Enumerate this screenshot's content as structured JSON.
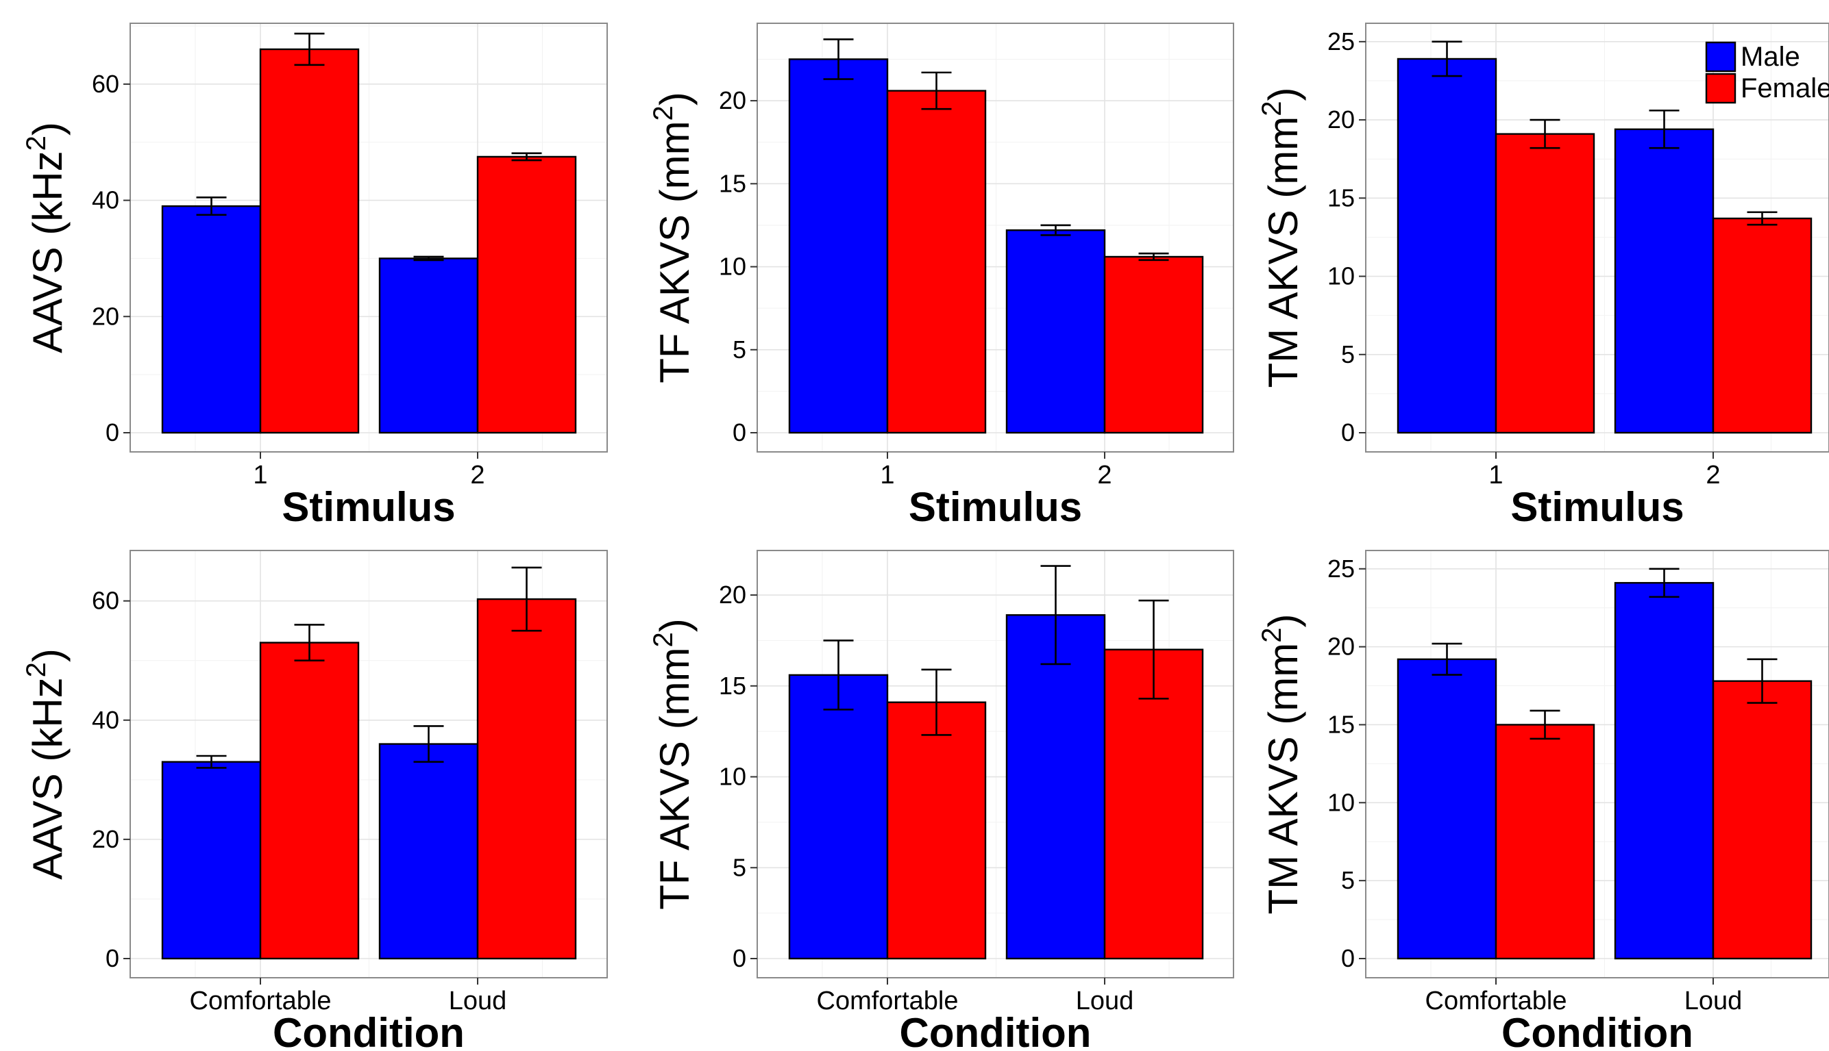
{
  "legend": {
    "items": [
      {
        "label": "Male",
        "color": "#0000ff"
      },
      {
        "label": "Female",
        "color": "#ff0000"
      }
    ],
    "placement": "top-right"
  },
  "chart_data": [
    {
      "type": "bar",
      "xlabel": "Stimulus",
      "ylabel_main": "AAVS (kHz",
      "ylabel_sup": "2",
      "ylabel_tail": ")",
      "categories": [
        "1",
        "2"
      ],
      "ylim": [
        0,
        70
      ],
      "yticks": [
        0,
        20,
        40,
        60
      ],
      "grid": true,
      "series": [
        {
          "name": "Male",
          "color": "#0000ff",
          "values": [
            39,
            30
          ],
          "errors": [
            1.5,
            0.3
          ]
        },
        {
          "name": "Female",
          "color": "#ff0000",
          "values": [
            66,
            47.5
          ],
          "errors": [
            2.7,
            0.6
          ]
        }
      ]
    },
    {
      "type": "bar",
      "xlabel": "Stimulus",
      "ylabel_main": "TF AKVS (mm",
      "ylabel_sup": "2",
      "ylabel_tail": ")",
      "categories": [
        "1",
        "2"
      ],
      "ylim": [
        0,
        24.5
      ],
      "yticks": [
        0,
        5,
        10,
        15,
        20
      ],
      "grid": true,
      "series": [
        {
          "name": "Male",
          "color": "#0000ff",
          "values": [
            22.5,
            12.2
          ],
          "errors": [
            1.2,
            0.3
          ]
        },
        {
          "name": "Female",
          "color": "#ff0000",
          "values": [
            20.6,
            10.6
          ],
          "errors": [
            1.1,
            0.2
          ]
        }
      ]
    },
    {
      "type": "bar",
      "xlabel": "Stimulus",
      "ylabel_main": "TM AKVS (mm",
      "ylabel_sup": "2",
      "ylabel_tail": ")",
      "categories": [
        "1",
        "2"
      ],
      "ylim": [
        0,
        26
      ],
      "yticks": [
        0,
        5,
        10,
        15,
        20,
        25
      ],
      "grid": true,
      "series": [
        {
          "name": "Male",
          "color": "#0000ff",
          "values": [
            23.9,
            19.4
          ],
          "errors": [
            1.1,
            1.2
          ]
        },
        {
          "name": "Female",
          "color": "#ff0000",
          "values": [
            19.1,
            13.7
          ],
          "errors": [
            0.9,
            0.4
          ]
        }
      ]
    },
    {
      "type": "bar",
      "xlabel": "Condition",
      "ylabel_main": "AAVS (kHz",
      "ylabel_sup": "2",
      "ylabel_tail": ")",
      "categories": [
        "Comfortable",
        "Loud"
      ],
      "ylim": [
        0,
        68
      ],
      "yticks": [
        0,
        20,
        40,
        60
      ],
      "grid": true,
      "series": [
        {
          "name": "Male",
          "color": "#0000ff",
          "values": [
            33,
            36
          ],
          "errors": [
            1,
            3
          ]
        },
        {
          "name": "Female",
          "color": "#ff0000",
          "values": [
            53,
            60.3
          ],
          "errors": [
            3,
            5.3
          ]
        }
      ]
    },
    {
      "type": "bar",
      "xlabel": "Condition",
      "ylabel_main": "TF AKVS (mm",
      "ylabel_sup": "2",
      "ylabel_tail": ")",
      "categories": [
        "Comfortable",
        "Loud"
      ],
      "ylim": [
        0,
        22.3
      ],
      "yticks": [
        0,
        5,
        10,
        15,
        20
      ],
      "grid": true,
      "series": [
        {
          "name": "Male",
          "color": "#0000ff",
          "values": [
            15.6,
            18.9
          ],
          "errors": [
            1.9,
            2.7
          ]
        },
        {
          "name": "Female",
          "color": "#ff0000",
          "values": [
            14.1,
            17.0
          ],
          "errors": [
            1.8,
            2.7
          ]
        }
      ]
    },
    {
      "type": "bar",
      "xlabel": "Condition",
      "ylabel_main": "TM AKVS (mm",
      "ylabel_sup": "2",
      "ylabel_tail": ")",
      "categories": [
        "Comfortable",
        "Loud"
      ],
      "ylim": [
        0,
        26
      ],
      "yticks": [
        0,
        5,
        10,
        15,
        20,
        25
      ],
      "grid": true,
      "series": [
        {
          "name": "Male",
          "color": "#0000ff",
          "values": [
            19.2,
            24.1
          ],
          "errors": [
            1.0,
            0.9
          ]
        },
        {
          "name": "Female",
          "color": "#ff0000",
          "values": [
            15.0,
            17.8
          ],
          "errors": [
            0.9,
            1.4
          ]
        }
      ]
    }
  ]
}
